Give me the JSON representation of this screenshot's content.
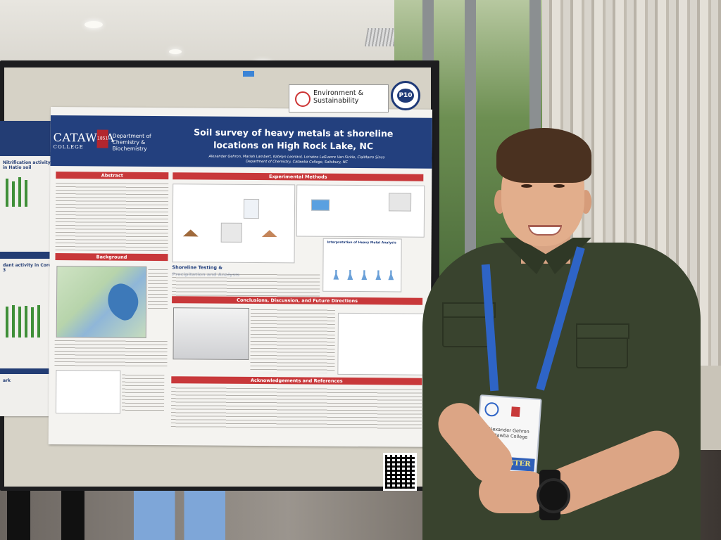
{
  "poster": {
    "college": "CATAWBA",
    "college_sub": "COLLEGE",
    "founded": "1851",
    "department": "Department of Chemistry & Biochemistry",
    "title": "Soil survey of heavy metals at shoreline locations on High Rock Lake, NC",
    "authors": "Alexander Gehron, Mariah Lambert, Katelyn Leonard, Lorraine LaGuerre Van Sickle, ClaiMarro Sinco",
    "affiliation": "Department of Chemistry, Catawba College, Salisbury, NC",
    "sections": {
      "abstract": "Abstract",
      "methods": "Experimental Methods",
      "background": "Background",
      "conclusions": "Conclusions, Discussion, and Future Directions",
      "acknowledgements": "Acknowledgements and References",
      "shoreline": "Shoreline Testing & Precipitation and Analysis",
      "metal_analysis": "Interpretation of Heavy Metal Analysis"
    },
    "left_poster": {
      "heading_1": "Nitrification activity in Hatio soil",
      "heading_2": "dant activity in Core-3",
      "footer": "ark"
    }
  },
  "topic_card": {
    "label": "Environment & Sustainability"
  },
  "poster_number": "P10",
  "presenter": {
    "badge_name": "Alexander Gehron",
    "badge_affiliation": "Catawba College",
    "badge_role": "PRESENTER"
  }
}
